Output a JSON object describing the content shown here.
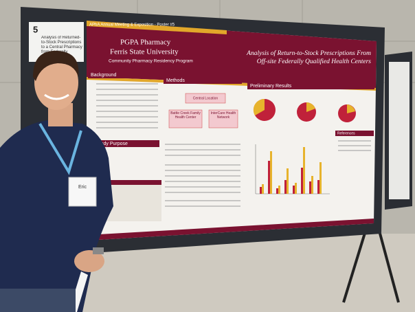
{
  "placard": {
    "number": "5",
    "title": "Analysis of Returned-to-Stock Prescriptions to a Central Pharmacy from Federally Qualified"
  },
  "poster": {
    "banner": "APhA Annual Meeting & Exposition - Poster #5",
    "org": [
      "PGPA Pharmacy",
      "Ferris State University",
      "Community Pharmacy Residency Program"
    ],
    "title": [
      "Analysis of Return-to-Stock Prescriptions From",
      "Off-site Federally Qualified Health Centers"
    ],
    "sections": {
      "background": "Background",
      "methods": "Methods",
      "results": "Preliminary Results",
      "purpose": "Study Purpose",
      "references": "References"
    },
    "sites": [
      "Central Location",
      "Battle Creek Family Health Center",
      "InterCare Health Network"
    ]
  },
  "badge": {
    "name": "Eric"
  }
}
